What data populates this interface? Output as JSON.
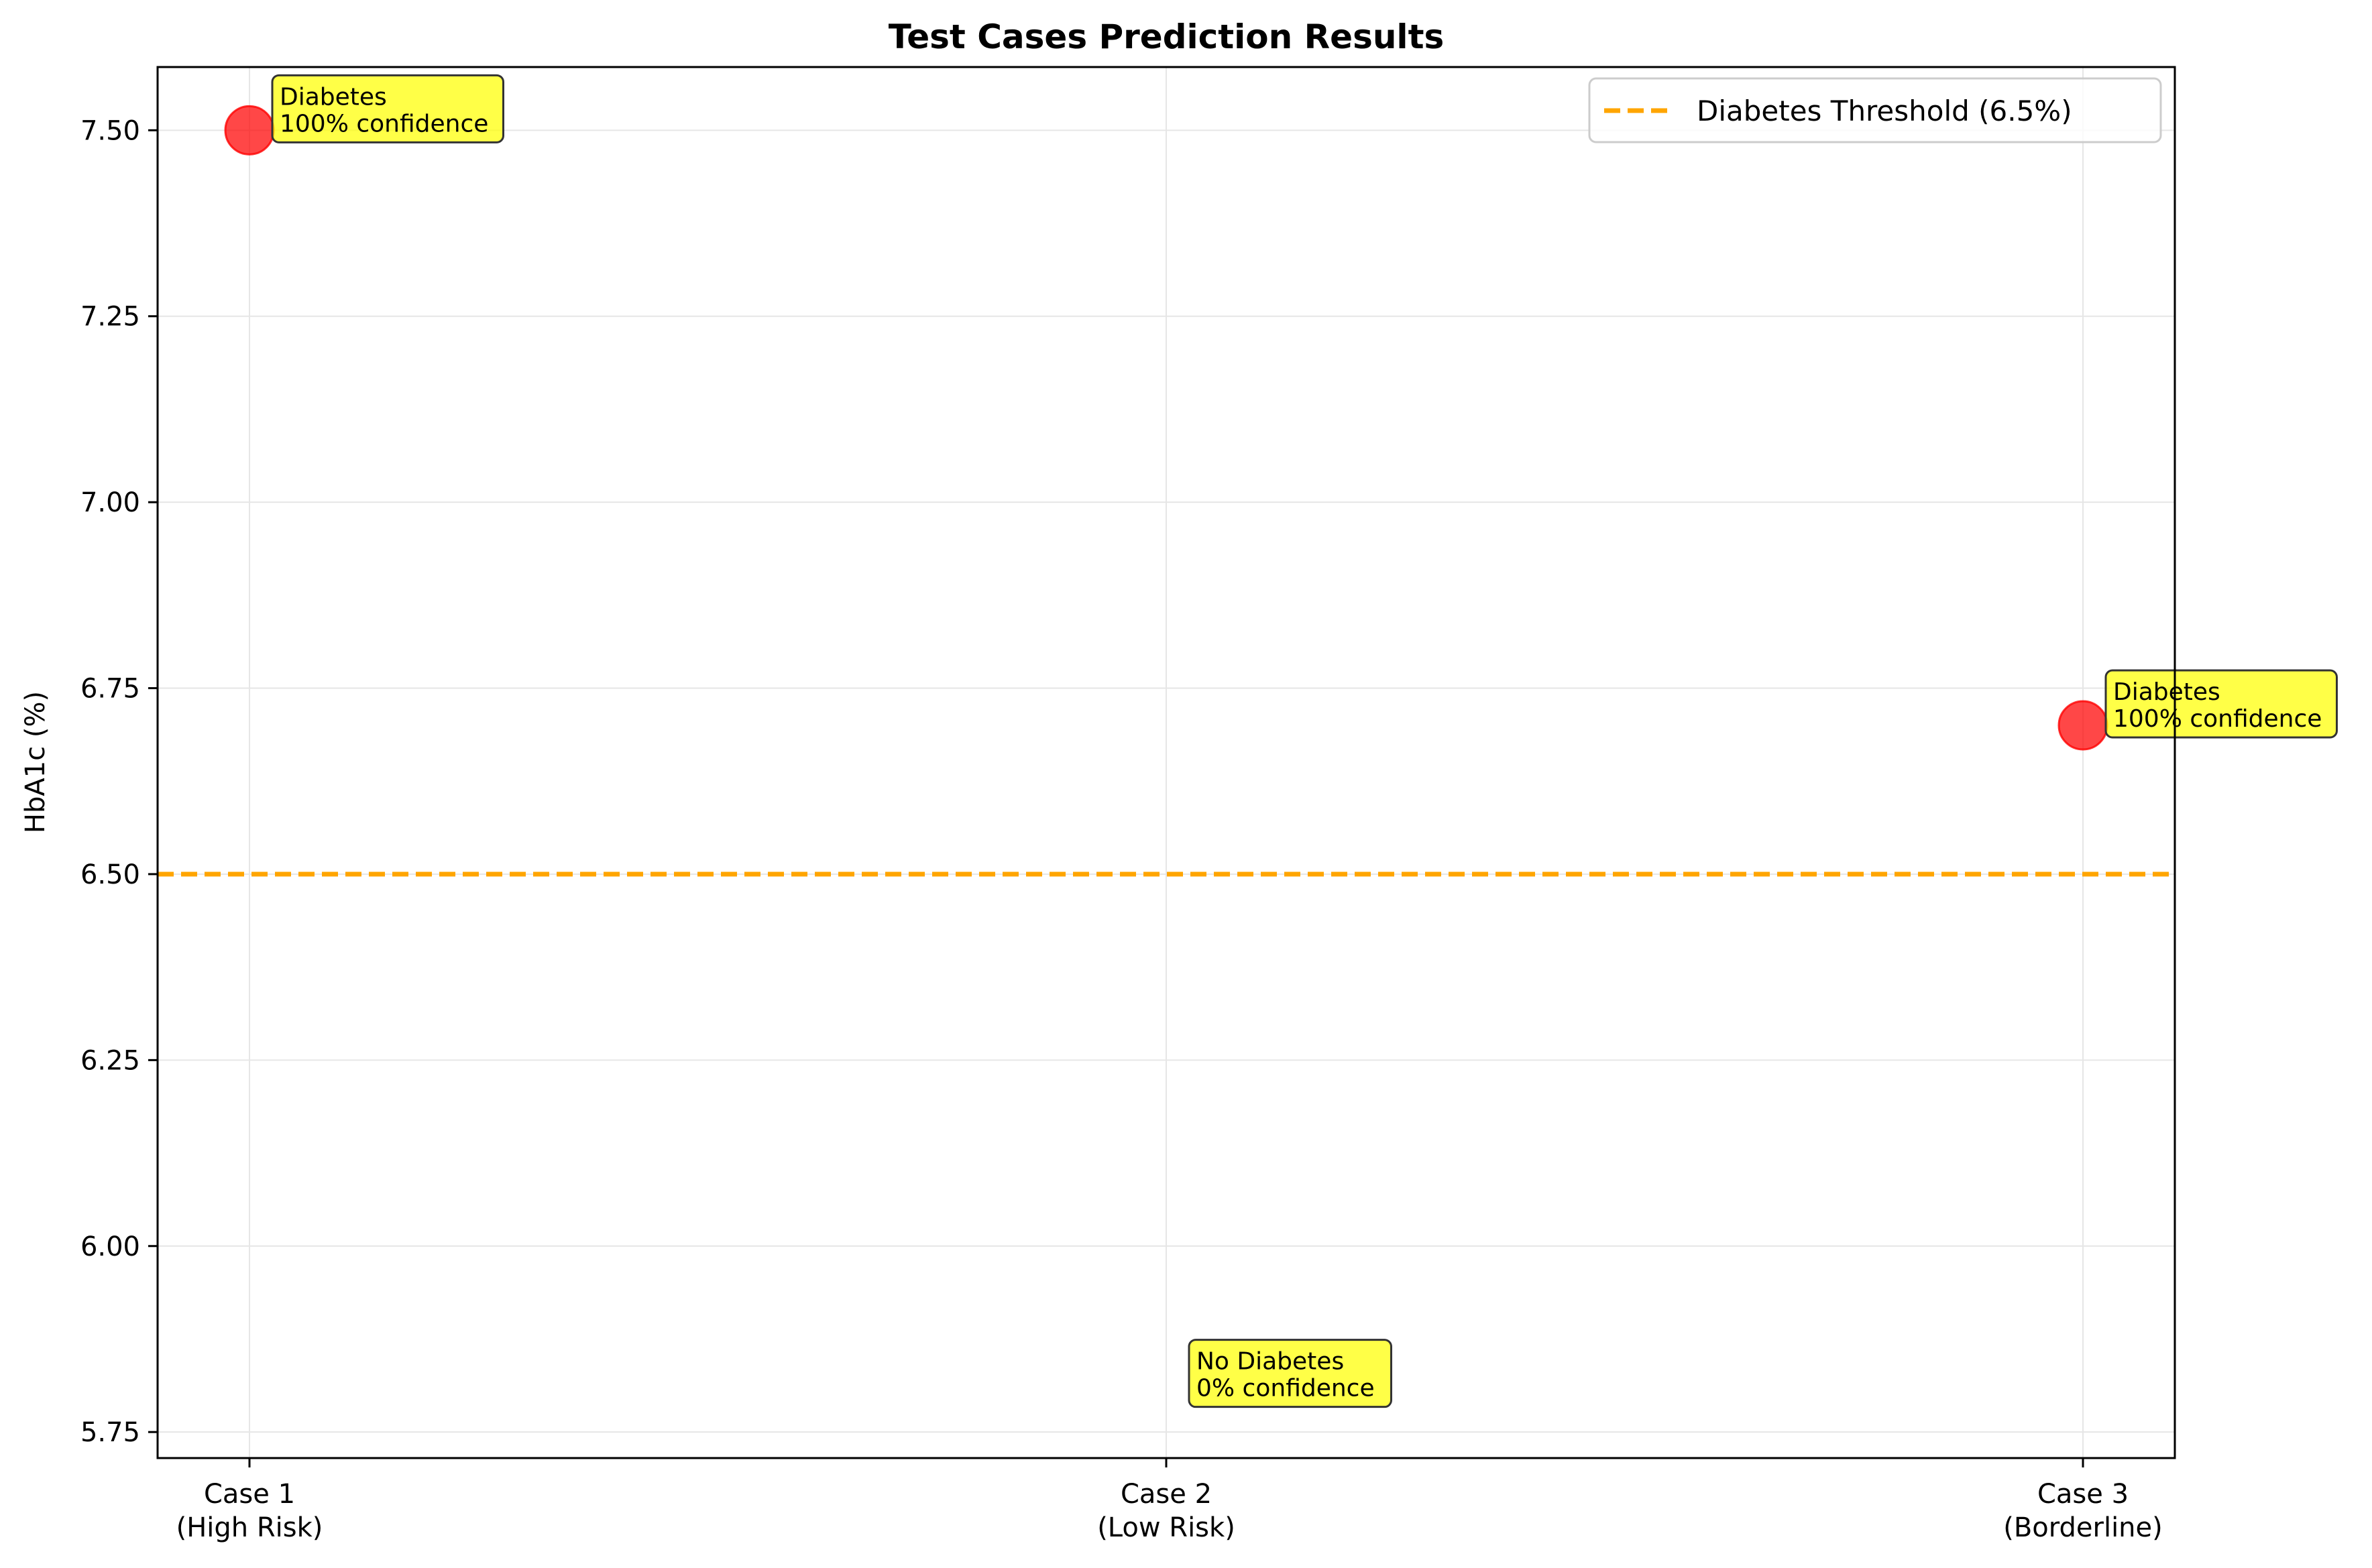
{
  "chart_data": {
    "type": "scatter",
    "title": "Test Cases Prediction Results",
    "xlabel": "",
    "ylabel": "HbA1c (%)",
    "categories": [
      [
        "Case 1",
        "(High Risk)"
      ],
      [
        "Case 2",
        "(Low Risk)"
      ],
      [
        "Case 3",
        "(Borderline)"
      ]
    ],
    "yticks": [
      "5.75",
      "6.00",
      "6.25",
      "6.50",
      "6.75",
      "7.00",
      "7.25",
      "7.50"
    ],
    "ylim": [
      5.715,
      7.585
    ],
    "grid": true,
    "points": [
      {
        "category": 0,
        "y": 7.5,
        "color": "#ff0000"
      },
      {
        "category": 2,
        "y": 6.7,
        "color": "#ff0000"
      }
    ],
    "annotations": [
      {
        "category": 0,
        "y": 7.5,
        "lines": [
          "Diabetes",
          "100% confidence"
        ]
      },
      {
        "category": 1,
        "y": 5.8,
        "lines": [
          "No Diabetes",
          "0% confidence"
        ]
      },
      {
        "category": 2,
        "y": 6.7,
        "lines": [
          "Diabetes",
          "100% confidence"
        ]
      }
    ],
    "threshold": {
      "y": 6.5,
      "color": "#ffa500",
      "label": "Diabetes Threshold (6.5%)"
    },
    "legend": {
      "position": "top-right"
    },
    "annotation_box_color": "#ffff00"
  }
}
